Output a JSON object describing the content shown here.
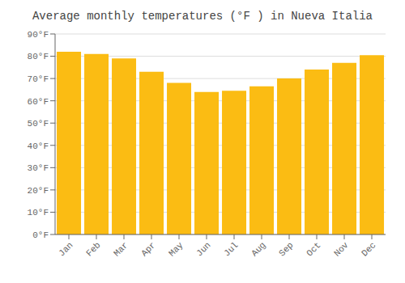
{
  "chart_data": {
    "type": "bar",
    "title": "Average monthly temperatures (°F ) in Nueva Italia",
    "categories": [
      "Jan",
      "Feb",
      "Mar",
      "Apr",
      "May",
      "Jun",
      "Jul",
      "Aug",
      "Sep",
      "Oct",
      "Nov",
      "Dec"
    ],
    "values": [
      82,
      81,
      79,
      73,
      68,
      64,
      64.5,
      66.5,
      70,
      74,
      77,
      80.5
    ],
    "color": "#FBBC13",
    "ylim": [
      0,
      90
    ],
    "yticks": [
      {
        "value": 0,
        "label": "0°F"
      },
      {
        "value": 10,
        "label": "10°F"
      },
      {
        "value": 20,
        "label": "20°F"
      },
      {
        "value": 30,
        "label": "30°F"
      },
      {
        "value": 40,
        "label": "40°F"
      },
      {
        "value": 50,
        "label": "50°F"
      },
      {
        "value": 60,
        "label": "60°F"
      },
      {
        "value": 70,
        "label": "70°F"
      },
      {
        "value": 80,
        "label": "80°F"
      },
      {
        "value": 90,
        "label": "90°F"
      }
    ],
    "grid": true
  }
}
